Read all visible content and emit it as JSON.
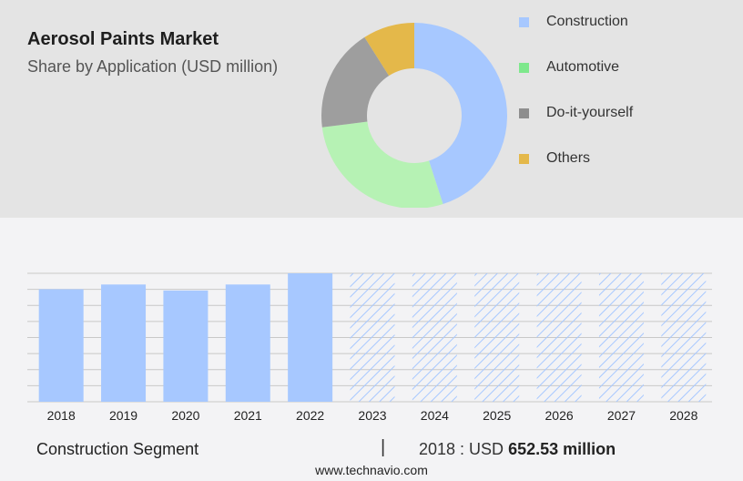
{
  "header": {
    "title": "Aerosol Paints Market",
    "subtitle": "Share by Application (USD million)"
  },
  "donut_chart": {
    "type": "pie",
    "style": "donut",
    "segments": [
      {
        "name": "Construction",
        "share": 0.45,
        "color": "#a7c8ff"
      },
      {
        "name": "Automotive",
        "share": 0.28,
        "color": "#b6f2b4"
      },
      {
        "name": "Do-it-yourself",
        "share": 0.18,
        "color": "#9e9e9e"
      },
      {
        "name": "Others",
        "share": 0.09,
        "color": "#e4b84a"
      }
    ]
  },
  "legend": {
    "placement": "right",
    "items": [
      {
        "label": "Construction",
        "color": "#a7c8ff"
      },
      {
        "label": "Automotive",
        "color": "#7ee88c"
      },
      {
        "label": "Do-it-yourself",
        "color": "#8e8e8e"
      },
      {
        "label": "Others",
        "color": "#e4b84a"
      }
    ]
  },
  "chart_data": {
    "type": "bar",
    "categories": [
      "2018",
      "2019",
      "2020",
      "2021",
      "2022",
      "2023",
      "2024",
      "2025",
      "2026",
      "2027",
      "2028"
    ],
    "values": [
      652.53,
      680,
      645,
      680,
      745,
      745,
      745,
      745,
      745,
      745,
      745
    ],
    "forecast_from": "2023",
    "bar_color": "#a7c8ff",
    "forecast_pattern_color": "#a7c8ff",
    "grid": true,
    "ylim": [
      0,
      745
    ]
  },
  "footer": {
    "segment_label": "Construction Segment",
    "separator": "|",
    "value_prefix": "2018 : USD",
    "value_bold": "652.53 million",
    "site": "www.technavio.com"
  }
}
